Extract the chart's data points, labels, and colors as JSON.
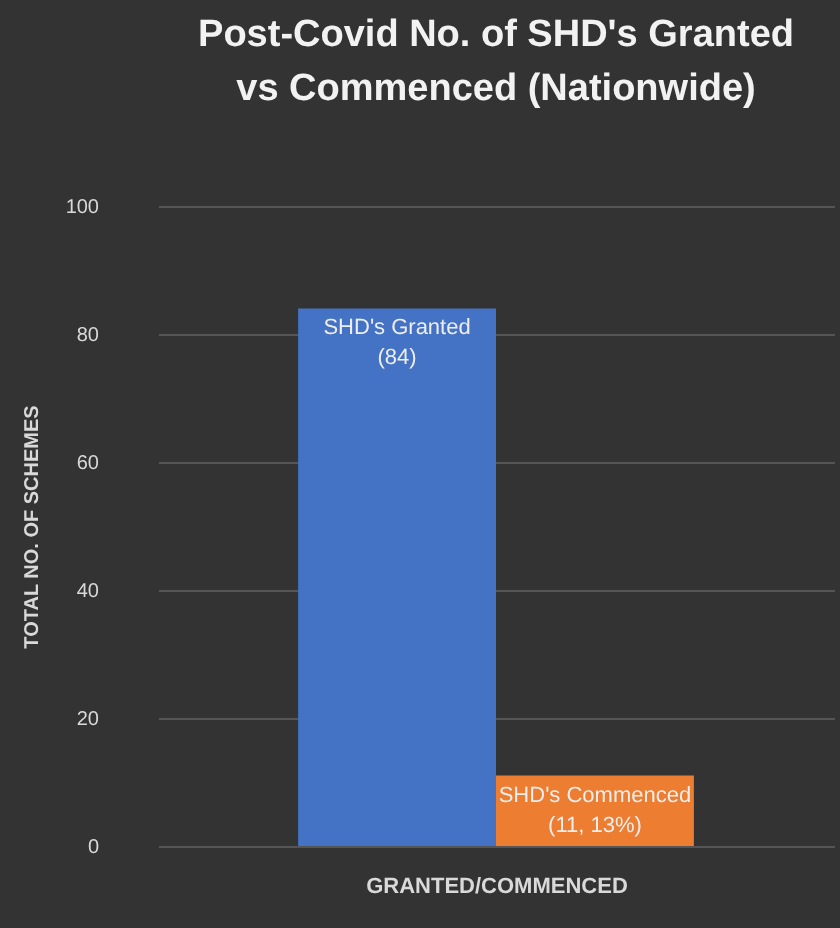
{
  "chart_data": {
    "type": "bar",
    "title": "Post-Covid No. of SHD's Granted vs Commenced (Nationwide)",
    "xlabel": "GRANTED/COMMENCED",
    "ylabel": "TOTAL NO. OF SCHEMES",
    "categories": [
      null
    ],
    "series": [
      {
        "name": "SHD's Granted",
        "color": "#4472c4",
        "values": [
          84
        ],
        "value_labels": [
          "(84)"
        ]
      },
      {
        "name": "SHD's Commenced",
        "color": "#ed7d31",
        "values": [
          11
        ],
        "value_labels": [
          "(11, 13%)"
        ]
      }
    ],
    "ylim": [
      0,
      100
    ],
    "yticks": [
      0,
      20,
      40,
      60,
      80,
      100
    ],
    "grid": "y"
  }
}
